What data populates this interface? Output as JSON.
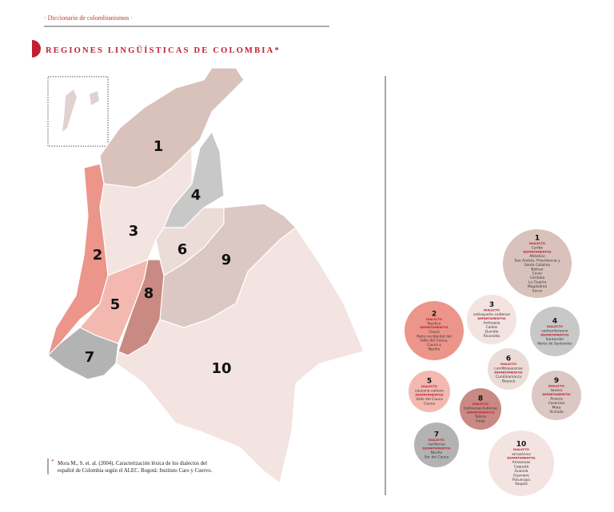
{
  "header": {
    "running_title": "· Diccionario de colombianismos ·",
    "title": "REGIONES LINGÜÍSTICAS DE COLOMBIA",
    "title_marker": "*"
  },
  "labels": {
    "dialect": "DIALECTO",
    "departments": "DEPARTAMENTOS"
  },
  "regions": [
    {
      "number": "1",
      "dialect": "Caribe",
      "departments": [
        "Atlántico",
        "San Andrés, Providencia y",
        "Santa Catalina",
        "Bolívar",
        "Cesar",
        "Córdoba",
        "La Guajira",
        "Magdalena",
        "Sucre"
      ]
    },
    {
      "number": "2",
      "dialect": "Pacífico",
      "departments": [
        "Chocó",
        "Parte occidental del",
        "Valle del Cauca,",
        "Cauca y",
        "Nariño"
      ]
    },
    {
      "number": "3",
      "dialect": "antioqueño-caldense",
      "departments": [
        "Antioquia",
        "Caldas",
        "Quindío",
        "Risaralda"
      ]
    },
    {
      "number": "4",
      "dialect": "santandereano",
      "departments": [
        "Santander",
        "Norte de Santander"
      ]
    },
    {
      "number": "5",
      "dialect": "caucano-valluno",
      "departments": [
        "Valle del Cauca",
        "Cauca"
      ]
    },
    {
      "number": "6",
      "dialect": "cundiboyacense",
      "departments": [
        "Cundinamarca",
        "Boyacá"
      ]
    },
    {
      "number": "7",
      "dialect": "nariñense",
      "departments": [
        "Nariño",
        "Sur del Cauca"
      ]
    },
    {
      "number": "8",
      "dialect": "tolimense-huilense",
      "departments": [
        "Tolima",
        "Huila"
      ]
    },
    {
      "number": "9",
      "dialect": "llanero",
      "departments": [
        "Arauca",
        "Casanare",
        "Meta",
        "Vichada"
      ]
    },
    {
      "number": "10",
      "dialect": "amazónico",
      "departments": [
        "Amazonas",
        "Caquetá",
        "Guainía",
        "Guaviare",
        "Putumayo",
        "Vaupés"
      ]
    }
  ],
  "footnote": {
    "marker": "*",
    "lines": [
      "Mora M., S. et. al. (2004). Caracterización léxica de los dialectos del",
      "español de Colombia según el ALEC. Bogotá: Instituto Caro y Cuervo."
    ]
  }
}
